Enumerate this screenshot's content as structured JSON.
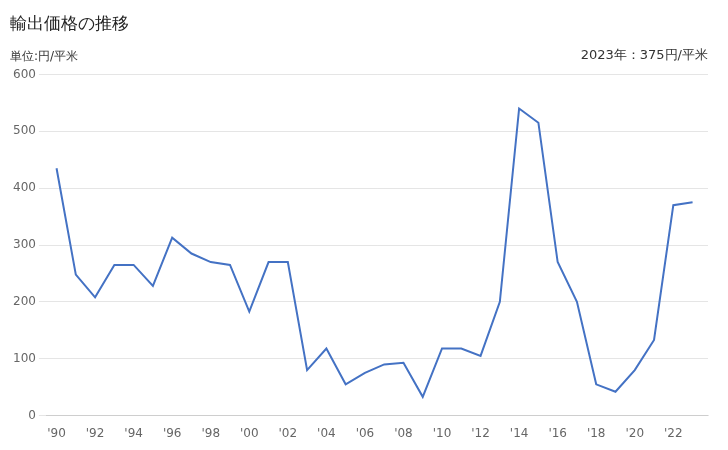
{
  "chart_data": {
    "type": "line",
    "title": "輸出価格の推移",
    "y_label": "単位:円/平米",
    "annotation": "2023年：375円/平米",
    "x": [
      1990,
      1991,
      1992,
      1993,
      1994,
      1995,
      1996,
      1997,
      1998,
      1999,
      2000,
      2001,
      2002,
      2003,
      2004,
      2005,
      2006,
      2007,
      2008,
      2009,
      2010,
      2011,
      2012,
      2013,
      2014,
      2015,
      2016,
      2017,
      2018,
      2019,
      2020,
      2021,
      2022,
      2023
    ],
    "values": [
      435,
      248,
      208,
      265,
      265,
      228,
      313,
      285,
      270,
      265,
      183,
      270,
      270,
      80,
      118,
      55,
      75,
      90,
      93,
      33,
      118,
      118,
      105,
      200,
      540,
      515,
      270,
      200,
      55,
      42,
      80,
      133,
      370,
      375
    ],
    "color": "#4472C4",
    "xlim": [
      1989.5,
      2023.8
    ],
    "xticks": [
      {
        "value": 1990,
        "label": "'90"
      },
      {
        "value": 1992,
        "label": "'92"
      },
      {
        "value": 1994,
        "label": "'94"
      },
      {
        "value": 1996,
        "label": "'96"
      },
      {
        "value": 1998,
        "label": "'98"
      },
      {
        "value": 2000,
        "label": "'00"
      },
      {
        "value": 2002,
        "label": "'02"
      },
      {
        "value": 2004,
        "label": "'04"
      },
      {
        "value": 2006,
        "label": "'06"
      },
      {
        "value": 2008,
        "label": "'08"
      },
      {
        "value": 2010,
        "label": "'10"
      },
      {
        "value": 2012,
        "label": "'12"
      },
      {
        "value": 2014,
        "label": "'14"
      },
      {
        "value": 2016,
        "label": "'16"
      },
      {
        "value": 2018,
        "label": "'18"
      },
      {
        "value": 2020,
        "label": "'20"
      },
      {
        "value": 2022,
        "label": "'22"
      }
    ],
    "ylim": [
      0,
      600
    ],
    "yticks": [
      0,
      100,
      200,
      300,
      400,
      500,
      600
    ],
    "grid": "y"
  }
}
